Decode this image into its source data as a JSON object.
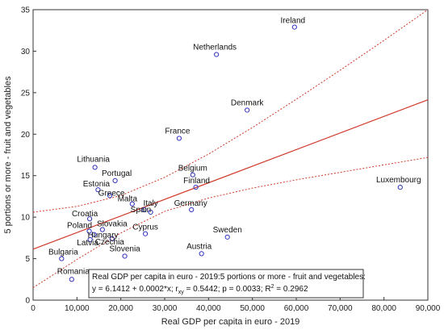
{
  "chart_data": {
    "type": "scatter",
    "xlabel": "Real GDP per capita in euro - 2019",
    "ylabel": "5 portions or more - fruit and vegetables",
    "xlim": [
      0,
      90000
    ],
    "ylim": [
      0,
      35
    ],
    "x_ticks": [
      0,
      10000,
      20000,
      30000,
      40000,
      50000,
      60000,
      70000,
      80000,
      90000
    ],
    "x_tick_labels": [
      "0",
      "10,000",
      "20,000",
      "30,000",
      "40,000",
      "50,000",
      "60,000",
      "70,000",
      "80,000",
      "90,000"
    ],
    "y_ticks": [
      0,
      5,
      10,
      15,
      20,
      25,
      30,
      35
    ],
    "y_tick_labels": [
      "0",
      "5",
      "10",
      "15",
      "20",
      "25",
      "30",
      "35"
    ],
    "grid": false,
    "points": [
      {
        "label": "Ireland",
        "x": 59600,
        "y": 32.9
      },
      {
        "label": "Netherlands",
        "x": 41800,
        "y": 29.6
      },
      {
        "label": "Denmark",
        "x": 48800,
        "y": 22.9
      },
      {
        "label": "France",
        "x": 33300,
        "y": 19.5
      },
      {
        "label": "Lithuania",
        "x": 14100,
        "y": 16.0
      },
      {
        "label": "Belgium",
        "x": 36400,
        "y": 15.1
      },
      {
        "label": "Portugal",
        "x": 18700,
        "y": 14.4
      },
      {
        "label": "Finland",
        "x": 37100,
        "y": 13.6
      },
      {
        "label": "Estonia",
        "x": 14800,
        "y": 13.3
      },
      {
        "label": "Luxembourg",
        "x": 83700,
        "y": 13.6
      },
      {
        "label": "Greece",
        "x": 17500,
        "y": 12.6
      },
      {
        "label": "Malta",
        "x": 22600,
        "y": 11.6
      },
      {
        "label": "Italy",
        "x": 26800,
        "y": 10.6
      },
      {
        "label": "Spain",
        "x": 25300,
        "y": 10.9
      },
      {
        "label": "Germany",
        "x": 36100,
        "y": 10.9
      },
      {
        "label": "Croatia",
        "x": 12900,
        "y": 9.8
      },
      {
        "label": "Slovakia",
        "x": 15800,
        "y": 8.5
      },
      {
        "label": "Poland",
        "x": 12800,
        "y": 8.3
      },
      {
        "label": "Hungary",
        "x": 13900,
        "y": 7.9
      },
      {
        "label": "Cyprus",
        "x": 25600,
        "y": 8.0
      },
      {
        "label": "Latvia",
        "x": 13000,
        "y": 7.3
      },
      {
        "label": "Czechia",
        "x": 18000,
        "y": 7.4
      },
      {
        "label": "Sweden",
        "x": 44300,
        "y": 7.6
      },
      {
        "label": "Austria",
        "x": 38400,
        "y": 5.6
      },
      {
        "label": "Slovenia",
        "x": 20900,
        "y": 5.3
      },
      {
        "label": "Bulgaria",
        "x": 6500,
        "y": 5.0
      },
      {
        "label": "Romania",
        "x": 8800,
        "y": 2.5
      }
    ],
    "regression": {
      "intercept": 6.1412,
      "slope": 0.0002
    },
    "confidence_band": {
      "x": [
        0,
        10000,
        20000,
        30000,
        40000,
        50000,
        60000,
        70000,
        80000,
        90000
      ],
      "lower": [
        1.5,
        4.9,
        8.1,
        10.7,
        12.3,
        13.5,
        14.5,
        15.4,
        16.3,
        17.2
      ],
      "upper": [
        10.6,
        11.3,
        12.6,
        14.8,
        17.6,
        20.8,
        24.2,
        27.7,
        31.3,
        35.0
      ]
    },
    "annotation": {
      "line1": "Real GDP per capita in euro - 2019:5 portions or more - fruit and vegetables:",
      "eq_prefix": "y = 6.1412 + 0.0002*x;  r",
      "r_sub": "xy",
      "eq_suffix": " = 0.5442; p = 0.0033; R",
      "r2_sup": "2",
      "r2_value": " = 0.2962"
    },
    "colors": {
      "marker": "#3030c0",
      "fit_line": "#d03a2a",
      "conf_line": "#d03a2a",
      "axis": "#333333"
    }
  }
}
